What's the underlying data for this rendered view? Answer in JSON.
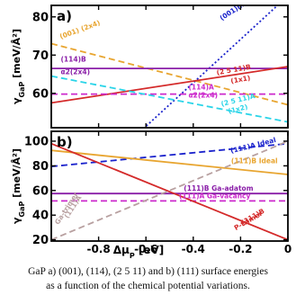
{
  "caption": {
    "line1": "GaP a) (001), (114), (2 5 11) and b) (111) surface energies",
    "line2": "as a function of the chemical potential variations."
  },
  "x_label_main": "Δμ",
  "x_label_sub": "P",
  "x_label_unit": " [eV]",
  "chart_data": [
    {
      "type": "line",
      "panel_label": "a)",
      "ylabel": "γGaP [meV/Å²]",
      "xlim": [
        -1.0,
        0.0
      ],
      "ylim": [
        51,
        83
      ],
      "yticks": [
        60,
        70,
        80
      ],
      "series": [
        {
          "name": "(001)md (2x4)",
          "color": "#1a22cc",
          "style": "dotted",
          "x": [
            -0.8,
            0.0
          ],
          "y": [
            40.0,
            85.5
          ]
        },
        {
          "name": "(001) (2x4)",
          "color": "#e8a530",
          "style": "dashed",
          "x": [
            -1.0,
            0.0
          ],
          "y": [
            73.0,
            57.0
          ]
        },
        {
          "name": "(114)B α2(2x4)",
          "color": "#8a1ea8",
          "style": "solid",
          "x": [
            -1.0,
            0.0
          ],
          "y": [
            66.5,
            66.5
          ]
        },
        {
          "name": "(2 5 11)B (1x1)",
          "color": "#d42a2a",
          "style": "solid",
          "x": [
            -1.0,
            0.0
          ],
          "y": [
            57.5,
            67.0
          ]
        },
        {
          "name": "(114)A α2(2x4)",
          "color": "#cc2acc",
          "style": "dashed",
          "x": [
            -1.0,
            0.0
          ],
          "y": [
            59.8,
            59.8
          ]
        },
        {
          "name": "(2 5 11)A (1x2)",
          "color": "#2ad4e8",
          "style": "dashed",
          "x": [
            -1.0,
            0.0
          ],
          "y": [
            64.5,
            52.5
          ]
        }
      ],
      "labels": [
        {
          "text": "(001)md (2x4)",
          "color": "#1a22cc",
          "x": -0.28,
          "y": 79.0,
          "rotate": -33
        },
        {
          "text": "(001) (2x4)",
          "color": "#e8a530",
          "x": -0.96,
          "y": 74.2,
          "rotate": -20
        },
        {
          "text": "(114)B",
          "color": "#8a1ea8",
          "x": -0.96,
          "y": 68.3,
          "rotate": 0
        },
        {
          "text": "α2(2x4)",
          "color": "#8a1ea8",
          "x": -0.96,
          "y": 65.0,
          "rotate": 0
        },
        {
          "text": "(2 5 11)B",
          "color": "#d42a2a",
          "x": -0.3,
          "y": 64.8,
          "rotate": -10
        },
        {
          "text": "(1x1)",
          "color": "#d42a2a",
          "x": -0.24,
          "y": 62.6,
          "rotate": -10
        },
        {
          "text": "(114)A",
          "color": "#cc2acc",
          "x": -0.42,
          "y": 61.0,
          "rotate": 0
        },
        {
          "text": "α2(2x4)",
          "color": "#cc2acc",
          "x": -0.42,
          "y": 58.9,
          "rotate": 0
        },
        {
          "text": "(2 5 11)A",
          "color": "#2ad4e8",
          "x": -0.28,
          "y": 56.6,
          "rotate": -14
        },
        {
          "text": "(1x2)",
          "color": "#2ad4e8",
          "x": -0.25,
          "y": 54.7,
          "rotate": -14
        }
      ]
    },
    {
      "type": "line",
      "panel_label": "b)",
      "ylabel": "γGaP [meV/Å²]",
      "xlabel": "ΔμP [eV]",
      "xlim": [
        -1.0,
        0.0
      ],
      "ylim": [
        19,
        108
      ],
      "yticks": [
        20,
        40,
        60,
        80,
        100
      ],
      "xticks": [
        -0.8,
        -0.6,
        -0.4,
        -0.2,
        0
      ],
      "series": [
        {
          "name": "(111)A Ideal",
          "color": "#1a22cc",
          "style": "dashed",
          "x": [
            -1.0,
            0.0
          ],
          "y": [
            79.5,
            98.0
          ]
        },
        {
          "name": "(111)B Ideal",
          "color": "#e8a530",
          "style": "solid",
          "x": [
            -1.0,
            0.0
          ],
          "y": [
            92.5,
            73.0
          ]
        },
        {
          "name": "(111)B Ga-adatom",
          "color": "#8a1ea8",
          "style": "solid",
          "x": [
            -1.0,
            0.0
          ],
          "y": [
            57.5,
            57.5
          ]
        },
        {
          "name": "(111)A Ga-vacancy",
          "color": "#cc2acc",
          "style": "dashed",
          "x": [
            -1.0,
            0.0
          ],
          "y": [
            51.5,
            51.5
          ]
        },
        {
          "name": "(111)B P-trimer",
          "color": "#d42a2a",
          "style": "solid",
          "x": [
            -1.0,
            0.0
          ],
          "y": [
            98.0,
            20.0
          ]
        },
        {
          "name": "(111)A Ga-trimer",
          "color": "#b8a0a0",
          "style": "dashed",
          "x": [
            -1.0,
            0.0
          ],
          "y": [
            20.0,
            100.0
          ]
        }
      ],
      "labels": [
        {
          "text": "(111)A Ideal",
          "color": "#1a22cc",
          "x": -0.24,
          "y": 90.3,
          "rotate": -14
        },
        {
          "text": "(111)B Ideal",
          "color": "#e8a530",
          "x": -0.24,
          "y": 82.0,
          "rotate": 0
        },
        {
          "text": "(111)B Ga-adatom",
          "color": "#8a1ea8",
          "x": -0.44,
          "y": 60.0,
          "rotate": 0
        },
        {
          "text": "(111)A Ga-vacancy",
          "color": "#cc2acc",
          "x": -0.46,
          "y": 53.5,
          "rotate": 0
        },
        {
          "text": "(111)A",
          "color": "#b8a0a0",
          "x": -0.93,
          "y": 37.0,
          "rotate": -57
        },
        {
          "text": "Ga-trimer",
          "color": "#b8a0a0",
          "x": -0.97,
          "y": 32.0,
          "rotate": -57
        },
        {
          "text": "(111)B",
          "color": "#d42a2a",
          "x": -0.19,
          "y": 32.0,
          "rotate": -30
        },
        {
          "text": "P-trimer",
          "color": "#d42a2a",
          "x": -0.22,
          "y": 27.5,
          "rotate": -30
        }
      ]
    }
  ]
}
